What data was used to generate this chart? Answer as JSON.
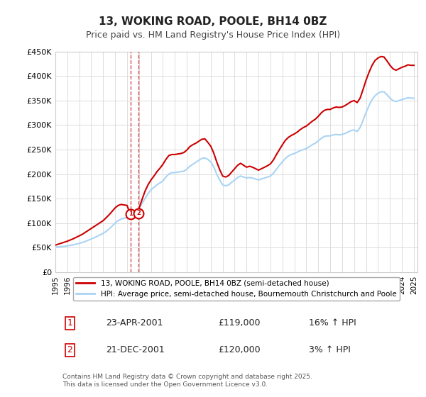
{
  "title": "13, WOKING ROAD, POOLE, BH14 0BZ",
  "subtitle": "Price paid vs. HM Land Registry's House Price Index (HPI)",
  "ylabel": "",
  "ylim": [
    0,
    450000
  ],
  "yticks": [
    0,
    50000,
    100000,
    150000,
    200000,
    250000,
    300000,
    350000,
    400000,
    450000
  ],
  "ytick_labels": [
    "£0",
    "£50K",
    "£100K",
    "£150K",
    "£200K",
    "£250K",
    "£300K",
    "£350K",
    "£400K",
    "£450K"
  ],
  "hpi_color": "#aad4f5",
  "price_color": "#cc0000",
  "marker_color": "#cc0000",
  "vline_color": "#cc0000",
  "background_color": "#ffffff",
  "legend_label_price": "13, WOKING ROAD, POOLE, BH14 0BZ (semi-detached house)",
  "legend_label_hpi": "HPI: Average price, semi-detached house, Bournemouth Christchurch and Poole",
  "transaction1_num": "1",
  "transaction1_date": "23-APR-2001",
  "transaction1_price": "£119,000",
  "transaction1_hpi": "16% ↑ HPI",
  "transaction2_num": "2",
  "transaction2_date": "21-DEC-2001",
  "transaction2_price": "£120,000",
  "transaction2_hpi": "3% ↑ HPI",
  "footer": "Contains HM Land Registry data © Crown copyright and database right 2025.\nThis data is licensed under the Open Government Licence v3.0.",
  "transaction1_x": 2001.31,
  "transaction1_y": 119000,
  "transaction2_x": 2001.97,
  "transaction2_y": 120000,
  "hpi_data_x": [
    1995.0,
    1995.25,
    1995.5,
    1995.75,
    1996.0,
    1996.25,
    1996.5,
    1996.75,
    1997.0,
    1997.25,
    1997.5,
    1997.75,
    1998.0,
    1998.25,
    1998.5,
    1998.75,
    1999.0,
    1999.25,
    1999.5,
    1999.75,
    2000.0,
    2000.25,
    2000.5,
    2000.75,
    2001.0,
    2001.25,
    2001.5,
    2001.75,
    2002.0,
    2002.25,
    2002.5,
    2002.75,
    2003.0,
    2003.25,
    2003.5,
    2003.75,
    2004.0,
    2004.25,
    2004.5,
    2004.75,
    2005.0,
    2005.25,
    2005.5,
    2005.75,
    2006.0,
    2006.25,
    2006.5,
    2006.75,
    2007.0,
    2007.25,
    2007.5,
    2007.75,
    2008.0,
    2008.25,
    2008.5,
    2008.75,
    2009.0,
    2009.25,
    2009.5,
    2009.75,
    2010.0,
    2010.25,
    2010.5,
    2010.75,
    2011.0,
    2011.25,
    2011.5,
    2011.75,
    2012.0,
    2012.25,
    2012.5,
    2012.75,
    2013.0,
    2013.25,
    2013.5,
    2013.75,
    2014.0,
    2014.25,
    2014.5,
    2014.75,
    2015.0,
    2015.25,
    2015.5,
    2015.75,
    2016.0,
    2016.25,
    2016.5,
    2016.75,
    2017.0,
    2017.25,
    2017.5,
    2017.75,
    2018.0,
    2018.25,
    2018.5,
    2018.75,
    2019.0,
    2019.25,
    2019.5,
    2019.75,
    2020.0,
    2020.25,
    2020.5,
    2020.75,
    2021.0,
    2021.25,
    2021.5,
    2021.75,
    2022.0,
    2022.25,
    2022.5,
    2022.75,
    2023.0,
    2023.25,
    2023.5,
    2023.75,
    2024.0,
    2024.25,
    2024.5,
    2024.75,
    2025.0
  ],
  "hpi_data_y": [
    51000,
    51500,
    52000,
    52500,
    53500,
    54500,
    55500,
    57000,
    58500,
    60500,
    62500,
    65000,
    67500,
    70000,
    73000,
    76000,
    79000,
    83000,
    88000,
    94000,
    100000,
    105000,
    108000,
    110000,
    111000,
    113000,
    118000,
    123000,
    130000,
    140000,
    150000,
    160000,
    168000,
    173000,
    178000,
    182000,
    186000,
    194000,
    200000,
    203000,
    203000,
    204000,
    205000,
    206000,
    210000,
    216000,
    220000,
    224000,
    228000,
    232000,
    233000,
    230000,
    225000,
    215000,
    200000,
    188000,
    178000,
    176000,
    178000,
    183000,
    188000,
    193000,
    196000,
    194000,
    192000,
    193000,
    192000,
    190000,
    188000,
    190000,
    192000,
    194000,
    196000,
    202000,
    210000,
    218000,
    225000,
    232000,
    237000,
    240000,
    242000,
    245000,
    248000,
    250000,
    252000,
    256000,
    260000,
    263000,
    268000,
    273000,
    277000,
    278000,
    278000,
    280000,
    281000,
    280000,
    281000,
    283000,
    286000,
    289000,
    290000,
    287000,
    295000,
    310000,
    326000,
    340000,
    352000,
    360000,
    365000,
    368000,
    368000,
    362000,
    355000,
    350000,
    348000,
    350000,
    352000,
    354000,
    356000,
    355000,
    355000
  ],
  "price_data_x": [
    1995.0,
    1995.25,
    1995.5,
    1995.75,
    1996.0,
    1996.25,
    1996.5,
    1996.75,
    1997.0,
    1997.25,
    1997.5,
    1997.75,
    1998.0,
    1998.25,
    1998.5,
    1998.75,
    1999.0,
    1999.25,
    1999.5,
    1999.75,
    2000.0,
    2000.25,
    2000.5,
    2000.75,
    2001.0,
    2001.25,
    2001.5,
    2001.75,
    2002.0,
    2002.25,
    2002.5,
    2002.75,
    2003.0,
    2003.25,
    2003.5,
    2003.75,
    2004.0,
    2004.25,
    2004.5,
    2004.75,
    2005.0,
    2005.25,
    2005.5,
    2005.75,
    2006.0,
    2006.25,
    2006.5,
    2006.75,
    2007.0,
    2007.25,
    2007.5,
    2007.75,
    2008.0,
    2008.25,
    2008.5,
    2008.75,
    2009.0,
    2009.25,
    2009.5,
    2009.75,
    2010.0,
    2010.25,
    2010.5,
    2010.75,
    2011.0,
    2011.25,
    2011.5,
    2011.75,
    2012.0,
    2012.25,
    2012.5,
    2012.75,
    2013.0,
    2013.25,
    2013.5,
    2013.75,
    2014.0,
    2014.25,
    2014.5,
    2014.75,
    2015.0,
    2015.25,
    2015.5,
    2015.75,
    2016.0,
    2016.25,
    2016.5,
    2016.75,
    2017.0,
    2017.25,
    2017.5,
    2017.75,
    2018.0,
    2018.25,
    2018.5,
    2018.75,
    2019.0,
    2019.25,
    2019.5,
    2019.75,
    2020.0,
    2020.25,
    2020.5,
    2020.75,
    2021.0,
    2021.25,
    2021.5,
    2021.75,
    2022.0,
    2022.25,
    2022.5,
    2022.75,
    2023.0,
    2023.25,
    2023.5,
    2023.75,
    2024.0,
    2024.25,
    2024.5,
    2024.75,
    2025.0
  ],
  "price_data_y": [
    55000,
    57000,
    59000,
    61000,
    63000,
    65500,
    68000,
    71000,
    74000,
    77000,
    81000,
    85000,
    89000,
    93000,
    97000,
    101000,
    105000,
    111000,
    117000,
    124000,
    131000,
    136000,
    138000,
    137000,
    136000,
    119000,
    122000,
    120000,
    130000,
    148000,
    165000,
    178000,
    188000,
    196000,
    205000,
    212000,
    220000,
    230000,
    238000,
    240000,
    240000,
    241000,
    242000,
    244000,
    249000,
    256000,
    260000,
    263000,
    267000,
    271000,
    272000,
    265000,
    257000,
    243000,
    225000,
    209000,
    196000,
    194000,
    197000,
    204000,
    211000,
    218000,
    222000,
    218000,
    214000,
    216000,
    214000,
    211000,
    208000,
    211000,
    214000,
    217000,
    221000,
    229000,
    240000,
    250000,
    260000,
    269000,
    275000,
    279000,
    282000,
    286000,
    291000,
    295000,
    298000,
    303000,
    308000,
    312000,
    318000,
    325000,
    330000,
    332000,
    332000,
    335000,
    337000,
    336000,
    337000,
    340000,
    344000,
    348000,
    350000,
    346000,
    355000,
    373000,
    392000,
    408000,
    422000,
    432000,
    437000,
    440000,
    439000,
    431000,
    422000,
    415000,
    412000,
    415000,
    418000,
    420000,
    423000,
    422000,
    422000
  ],
  "xtick_years": [
    1995,
    1996,
    1997,
    1998,
    1999,
    2000,
    2001,
    2002,
    2003,
    2004,
    2005,
    2006,
    2007,
    2008,
    2009,
    2010,
    2011,
    2012,
    2013,
    2014,
    2015,
    2016,
    2017,
    2018,
    2019,
    2020,
    2021,
    2022,
    2023,
    2024,
    2025
  ]
}
